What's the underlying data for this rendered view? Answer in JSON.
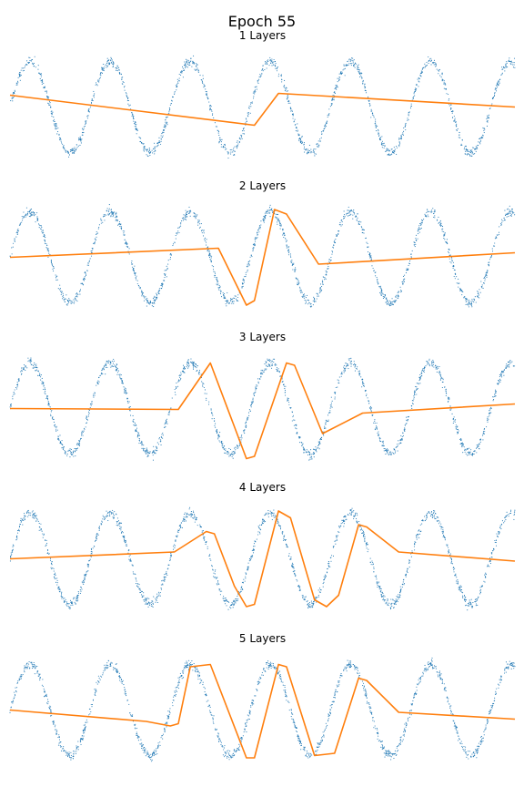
{
  "figure": {
    "title": "Epoch 55",
    "colors": {
      "data_points": "#1f77b4",
      "fit_line": "#ff7f0e"
    }
  },
  "chart_data": [
    {
      "type": "scatter",
      "title": "1 Layers",
      "xlim": [
        0,
        6.3
      ],
      "ylim": [
        -1.25,
        1.25
      ],
      "axes_visible": false,
      "series": [
        {
          "type": "scatter",
          "approximate_function": "sin(2*pi*x) + noise",
          "noise_std": 0.05,
          "x_range": [
            0,
            6.3
          ],
          "n_points": 1500
        },
        {
          "type": "line",
          "x": [
            0,
            3.05,
            3.35,
            6.3
          ],
          "y": [
            0.26,
            -0.4,
            0.3,
            0.0
          ]
        }
      ]
    },
    {
      "type": "scatter",
      "title": "2 Layers",
      "xlim": [
        0,
        6.3
      ],
      "ylim": [
        -1.25,
        1.25
      ],
      "axes_visible": false,
      "series": [
        {
          "type": "scatter",
          "approximate_function": "sin(2*pi*x) + noise",
          "noise_std": 0.05,
          "x_range": [
            0,
            6.3
          ],
          "n_points": 1500
        },
        {
          "type": "line",
          "x": [
            0,
            2.6,
            2.95,
            3.05,
            3.3,
            3.45,
            3.85,
            6.3
          ],
          "y": [
            0.0,
            0.2,
            -1.05,
            -0.95,
            1.05,
            0.95,
            -0.15,
            0.1
          ]
        }
      ]
    },
    {
      "type": "scatter",
      "title": "3 Layers",
      "xlim": [
        0,
        6.3
      ],
      "ylim": [
        -1.25,
        1.25
      ],
      "axes_visible": false,
      "series": [
        {
          "type": "scatter",
          "approximate_function": "sin(2*pi*x) + noise",
          "noise_std": 0.05,
          "x_range": [
            0,
            6.3
          ],
          "n_points": 1500
        },
        {
          "type": "line",
          "x": [
            0,
            2.1,
            2.5,
            2.95,
            3.05,
            3.45,
            3.55,
            3.9,
            4.4,
            6.3
          ],
          "y": [
            0.0,
            -0.02,
            1.0,
            -1.1,
            -1.05,
            1.0,
            0.95,
            -0.55,
            -0.1,
            0.1
          ]
        }
      ]
    },
    {
      "type": "scatter",
      "title": "4 Layers",
      "xlim": [
        0,
        6.3
      ],
      "ylim": [
        -1.25,
        1.25
      ],
      "axes_visible": false,
      "series": [
        {
          "type": "scatter",
          "approximate_function": "sin(2*pi*x) + noise",
          "noise_std": 0.05,
          "x_range": [
            0,
            6.3
          ],
          "n_points": 1500
        },
        {
          "type": "line",
          "x": [
            0,
            2.05,
            2.45,
            2.55,
            2.8,
            2.95,
            3.05,
            3.35,
            3.5,
            3.8,
            3.95,
            4.1,
            4.35,
            4.45,
            4.85,
            6.3
          ],
          "y": [
            0.0,
            0.15,
            0.6,
            0.55,
            -0.6,
            -1.05,
            -1.0,
            1.05,
            0.9,
            -0.9,
            -1.05,
            -0.8,
            0.75,
            0.7,
            0.15,
            -0.05
          ]
        }
      ]
    },
    {
      "type": "scatter",
      "title": "5 Layers",
      "xlim": [
        0,
        6.3
      ],
      "ylim": [
        -1.25,
        1.25
      ],
      "axes_visible": false,
      "series": [
        {
          "type": "scatter",
          "approximate_function": "sin(2*pi*x) + noise",
          "noise_std": 0.05,
          "x_range": [
            0,
            6.3
          ],
          "n_points": 1500
        },
        {
          "type": "line",
          "x": [
            0,
            1.7,
            2.0,
            2.1,
            2.25,
            2.5,
            2.95,
            3.05,
            3.35,
            3.45,
            3.8,
            4.05,
            4.35,
            4.45,
            4.85,
            6.3
          ],
          "y": [
            0.0,
            -0.25,
            -0.35,
            -0.3,
            0.95,
            1.0,
            -1.05,
            -1.05,
            1.0,
            0.95,
            -1.0,
            -0.95,
            0.7,
            0.65,
            -0.05,
            -0.2
          ]
        }
      ]
    }
  ]
}
